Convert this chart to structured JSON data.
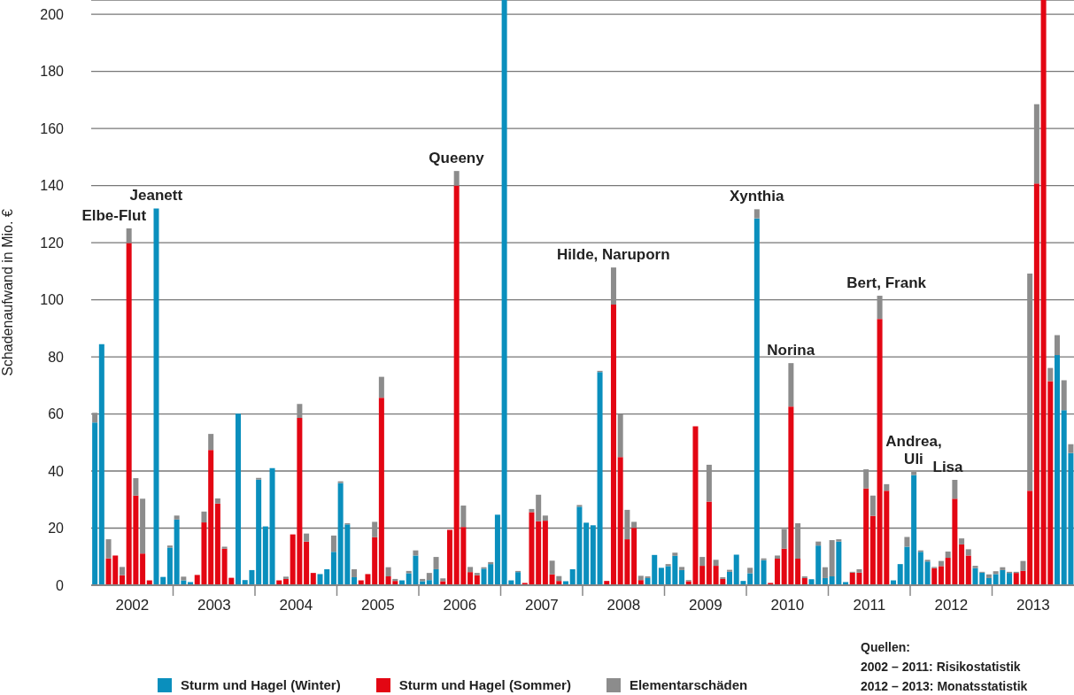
{
  "chart_data": {
    "type": "bar",
    "stacked": true,
    "ylabel": "Schadenaufwand in Mio. €",
    "x": [
      "2002-01",
      "2002-02",
      "2002-03",
      "2002-04",
      "2002-05",
      "2002-06",
      "2002-07",
      "2002-08",
      "2002-09",
      "2002-10",
      "2002-11",
      "2002-12",
      "2003-01",
      "2003-02",
      "2003-03",
      "2003-04",
      "2003-05",
      "2003-06",
      "2003-07",
      "2003-08",
      "2003-09",
      "2003-10",
      "2003-11",
      "2003-12",
      "2004-01",
      "2004-02",
      "2004-03",
      "2004-04",
      "2004-05",
      "2004-06",
      "2004-07",
      "2004-08",
      "2004-09",
      "2004-10",
      "2004-11",
      "2004-12",
      "2005-01",
      "2005-02",
      "2005-03",
      "2005-04",
      "2005-05",
      "2005-06",
      "2005-07",
      "2005-08",
      "2005-09",
      "2005-10",
      "2005-11",
      "2005-12",
      "2006-01",
      "2006-02",
      "2006-03",
      "2006-04",
      "2006-05",
      "2006-06",
      "2006-07",
      "2006-08",
      "2006-09",
      "2006-10",
      "2006-11",
      "2006-12",
      "2007-01",
      "2007-02",
      "2007-03",
      "2007-04",
      "2007-05",
      "2007-06",
      "2007-07",
      "2007-08",
      "2007-09",
      "2007-10",
      "2007-11",
      "2007-12",
      "2008-01",
      "2008-02",
      "2008-03",
      "2008-04",
      "2008-05",
      "2008-06",
      "2008-07",
      "2008-08",
      "2008-09",
      "2008-10",
      "2008-11",
      "2008-12",
      "2009-01",
      "2009-02",
      "2009-03",
      "2009-04",
      "2009-05",
      "2009-06",
      "2009-07",
      "2009-08",
      "2009-09",
      "2009-10",
      "2009-11",
      "2009-12",
      "2010-01",
      "2010-02",
      "2010-03",
      "2010-04",
      "2010-05",
      "2010-06",
      "2010-07",
      "2010-08",
      "2010-09",
      "2010-10",
      "2010-11",
      "2010-12",
      "2011-01",
      "2011-02",
      "2011-03",
      "2011-04",
      "2011-05",
      "2011-06",
      "2011-07",
      "2011-08",
      "2011-09",
      "2011-10",
      "2011-11",
      "2011-12",
      "2012-01",
      "2012-02",
      "2012-03",
      "2012-04",
      "2012-05",
      "2012-06",
      "2012-07",
      "2012-08",
      "2012-09",
      "2012-10",
      "2012-11",
      "2012-12",
      "2013-01",
      "2013-02",
      "2013-03",
      "2013-04",
      "2013-05",
      "2013-06",
      "2013-07",
      "2013-08",
      "2013-09",
      "2013-10",
      "2013-11",
      "2013-12"
    ],
    "series": [
      {
        "name": "Sturm und Hagel (Winter)",
        "color": "#0a8fbd",
        "values": [
          57,
          84.4,
          null,
          null,
          null,
          null,
          null,
          null,
          null,
          132,
          2.9,
          13.2,
          23,
          1.7,
          1.1,
          null,
          null,
          null,
          null,
          null,
          null,
          60.1,
          1.8,
          5.3,
          37,
          20.6,
          41,
          null,
          null,
          null,
          null,
          null,
          null,
          3.9,
          5.6,
          11.7,
          35.8,
          21.3,
          2.8,
          null,
          null,
          null,
          null,
          null,
          null,
          1.7,
          4.2,
          10.4,
          1.4,
          1.8,
          5.6,
          null,
          null,
          null,
          null,
          null,
          null,
          5.8,
          7.4,
          24.7,
          205,
          1.7,
          4.6,
          null,
          null,
          null,
          null,
          null,
          null,
          1.4,
          5.6,
          27.5,
          21.9,
          21,
          74.7,
          null,
          null,
          null,
          null,
          null,
          null,
          2.5,
          10.6,
          6.1,
          6.7,
          10.3,
          5.3,
          null,
          null,
          null,
          null,
          null,
          null,
          4.7,
          10.7,
          1.5,
          4.2,
          128.5,
          8.8,
          null,
          null,
          null,
          null,
          null,
          null,
          2.1,
          13.9,
          2.5,
          3.1,
          15.3,
          1.1,
          null,
          null,
          null,
          null,
          null,
          null,
          1.7,
          7.4,
          13.5,
          38.6,
          11.7,
          8.3,
          null,
          null,
          null,
          null,
          null,
          null,
          6,
          4.4,
          2.5,
          3.9,
          5.3,
          4.3,
          null,
          null,
          null,
          null,
          null,
          null,
          80.6,
          61.3,
          46.3
        ]
      },
      {
        "name": "Sturm und Hagel (Sommer)",
        "color": "#e30613",
        "values": [
          null,
          null,
          9.4,
          10.4,
          3.5,
          119.9,
          31.4,
          11.1,
          1.7,
          null,
          null,
          null,
          null,
          null,
          null,
          3.6,
          22,
          47.4,
          28.6,
          12.8,
          2.6,
          null,
          null,
          null,
          null,
          null,
          null,
          1.7,
          2.2,
          17.8,
          58.6,
          15.3,
          4.3,
          null,
          null,
          null,
          null,
          null,
          null,
          1.7,
          3.9,
          16.8,
          65.7,
          3.1,
          1.5,
          null,
          null,
          null,
          null,
          null,
          null,
          1.4,
          19.4,
          140,
          20.4,
          4.6,
          3.5,
          null,
          null,
          null,
          null,
          null,
          null,
          0.8,
          25.6,
          22.4,
          22.6,
          3.8,
          1.5,
          null,
          null,
          null,
          null,
          null,
          null,
          1.5,
          98.3,
          44.9,
          16.1,
          20.1,
          1.8,
          null,
          null,
          null,
          null,
          null,
          null,
          1.4,
          55.7,
          6.8,
          29.3,
          6.8,
          2.2,
          null,
          null,
          null,
          null,
          null,
          null,
          0.8,
          9.3,
          12.8,
          62.6,
          9.3,
          2.5,
          null,
          null,
          null,
          null,
          null,
          null,
          4.4,
          4.4,
          33.9,
          24.3,
          93.3,
          33.1,
          null,
          null,
          null,
          null,
          null,
          null,
          6,
          6.7,
          9.6,
          30.3,
          14.3,
          10.4,
          null,
          null,
          null,
          null,
          null,
          null,
          4.3,
          5,
          33.1,
          140.7,
          205,
          71.5,
          null,
          null,
          null
        ]
      },
      {
        "name": "Elementarschäden",
        "color": "#8c8c8c",
        "values": [
          3.4,
          null,
          6.7,
          null,
          2.9,
          5.1,
          6.1,
          19.2,
          null,
          null,
          null,
          0.7,
          1.4,
          1.3,
          null,
          null,
          3.8,
          5.6,
          1.8,
          0.7,
          null,
          null,
          null,
          null,
          0.6,
          null,
          null,
          null,
          0.8,
          null,
          4.9,
          2.8,
          null,
          null,
          null,
          5.7,
          0.6,
          0.4,
          2.8,
          null,
          null,
          5.4,
          7.3,
          3.2,
          0.7,
          null,
          0.8,
          1.8,
          0.8,
          2.5,
          4.3,
          1,
          null,
          5.1,
          7.5,
          1.8,
          0.8,
          0.5,
          0.7,
          null,
          null,
          null,
          0.4,
          null,
          1.1,
          9.3,
          1.8,
          4.8,
          1.7,
          null,
          null,
          0.6,
          null,
          null,
          0.4,
          null,
          13,
          15,
          10.3,
          2.1,
          1.5,
          0.6,
          null,
          null,
          0.7,
          1.1,
          1.1,
          0.4,
          null,
          3.1,
          12.9,
          2.1,
          0.6,
          0.7,
          null,
          null,
          1.9,
          3.2,
          0.6,
          null,
          1.1,
          6.9,
          15.2,
          12.4,
          0.6,
          null,
          1.4,
          3.8,
          12.7,
          0.8,
          null,
          0.3,
          1.2,
          6.7,
          7.1,
          8.1,
          2.3,
          null,
          null,
          3.4,
          1.1,
          0.5,
          0.6,
          0.4,
          1.8,
          2.2,
          6.6,
          2.1,
          2.2,
          0.8,
          0.3,
          1.3,
          1,
          1,
          0.4,
          0.4,
          3.5,
          76.1,
          27.8,
          null,
          4.6,
          7,
          10.5,
          3.1
        ]
      }
    ],
    "xlim": [
      "2001-12-16",
      "2013-12-16"
    ],
    "xticks": [
      {
        "value": "2002-06-16",
        "label": "2002"
      },
      {
        "value": "2002-12-16",
        "label": null
      },
      {
        "value": "2003-06-16",
        "label": "2003"
      },
      {
        "value": "2003-12-16",
        "label": null
      },
      {
        "value": "2004-06-16",
        "label": "2004"
      },
      {
        "value": "2004-12-16",
        "label": null
      },
      {
        "value": "2005-06-16",
        "label": "2005"
      },
      {
        "value": "2005-12-16",
        "label": null
      },
      {
        "value": "2006-06-16",
        "label": "2006"
      },
      {
        "value": "2006-12-16",
        "label": null
      },
      {
        "value": "2007-06-16",
        "label": "2007"
      },
      {
        "value": "2007-12-16",
        "label": null
      },
      {
        "value": "2008-06-16",
        "label": "2008"
      },
      {
        "value": "2008-12-16",
        "label": null
      },
      {
        "value": "2009-06-16",
        "label": "2009"
      },
      {
        "value": "2009-12-16",
        "label": null
      },
      {
        "value": "2010-06-16",
        "label": "2010"
      },
      {
        "value": "2010-12-16",
        "label": null
      },
      {
        "value": "2011-06-16",
        "label": "2011"
      },
      {
        "value": "2011-12-16",
        "label": null
      },
      {
        "value": "2012-06-16",
        "label": "2012"
      },
      {
        "value": "2012-12-16",
        "label": null
      },
      {
        "value": "2013-06-16",
        "label": "2013"
      }
    ],
    "ylim": [
      0,
      205
    ],
    "yticks": [
      0,
      20,
      40,
      60,
      80,
      100,
      120,
      140,
      160,
      180,
      200
    ],
    "grid": "y",
    "legend": "bottom",
    "annotations": [
      {
        "text": "Elbe-Flut",
        "x": "2002-06",
        "y": 125
      },
      {
        "text": "Jeanett",
        "x": "2002-10",
        "y": 132
      },
      {
        "text": "Queeny",
        "x": "2006-06",
        "y": 145.1
      },
      {
        "text": "Hilde, Naruporn",
        "x": "2008-05",
        "y": 111.3
      },
      {
        "text": "Xynthia",
        "x": "2010-02",
        "y": 131.7
      },
      {
        "text": "Norina",
        "x": "2010-07",
        "y": 77.8
      },
      {
        "text": "Bert, Frank",
        "x": "2011-09",
        "y": 101.4
      },
      {
        "text": "Andrea, Uli",
        "x": "2012-01",
        "y": 39.7
      },
      {
        "text": "Lisa",
        "x": "2012-06",
        "y": 36.9
      },
      "Quellen:",
      "2002 – 2011: Risikostatistik",
      "2012 – 2013: Monatsstatistik"
    ]
  }
}
